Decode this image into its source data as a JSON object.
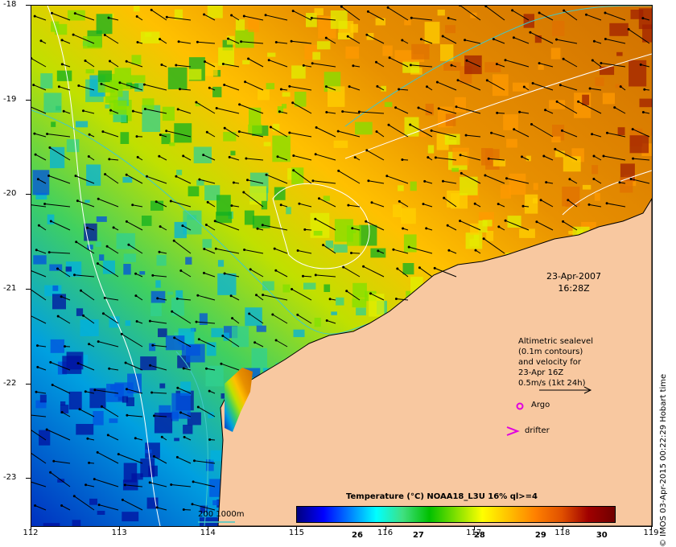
{
  "map": {
    "lat_ticks": [
      "-18",
      "-19",
      "-20",
      "-21",
      "-22",
      "-23"
    ],
    "lon_ticks": [
      "112",
      "113",
      "114",
      "115",
      "116",
      "117",
      "118",
      "119"
    ],
    "lon_range": [
      112,
      119
    ],
    "lat_range": [
      -18,
      -23.5
    ],
    "land_color": "#f8c8a0",
    "current_color": "#000000",
    "contour_color": "#ffffff",
    "bathymetry_color": "#40c8c8"
  },
  "annotations": {
    "date": "23-Apr-2007",
    "time": "16:28Z",
    "altimetric_note": [
      "Altimetric sealevel",
      "(0.1m contours)",
      "and velocity for",
      "23-Apr 16Z",
      "0.5m/s (1kt 24h)"
    ],
    "argo_label": "Argo",
    "drifter_label": "drifter",
    "bathymetry_label": "200  1000m",
    "argo_color": "#e000e0"
  },
  "colorbar": {
    "title": "Temperature (°C) NOAA18_L3U 16% ql>=4",
    "ticks": [
      "26",
      "27",
      "28",
      "29",
      "30"
    ],
    "range": [
      25,
      30.2
    ],
    "colors": [
      "#00007f",
      "#0000ff",
      "#0080ff",
      "#00ffff",
      "#40e080",
      "#00c000",
      "#80e000",
      "#ffff00",
      "#ffc000",
      "#ff8000",
      "#e05000",
      "#a00000",
      "#700000"
    ]
  },
  "credit": "© IMOS 03-Apr-2015 00:22:29 Hobart time"
}
